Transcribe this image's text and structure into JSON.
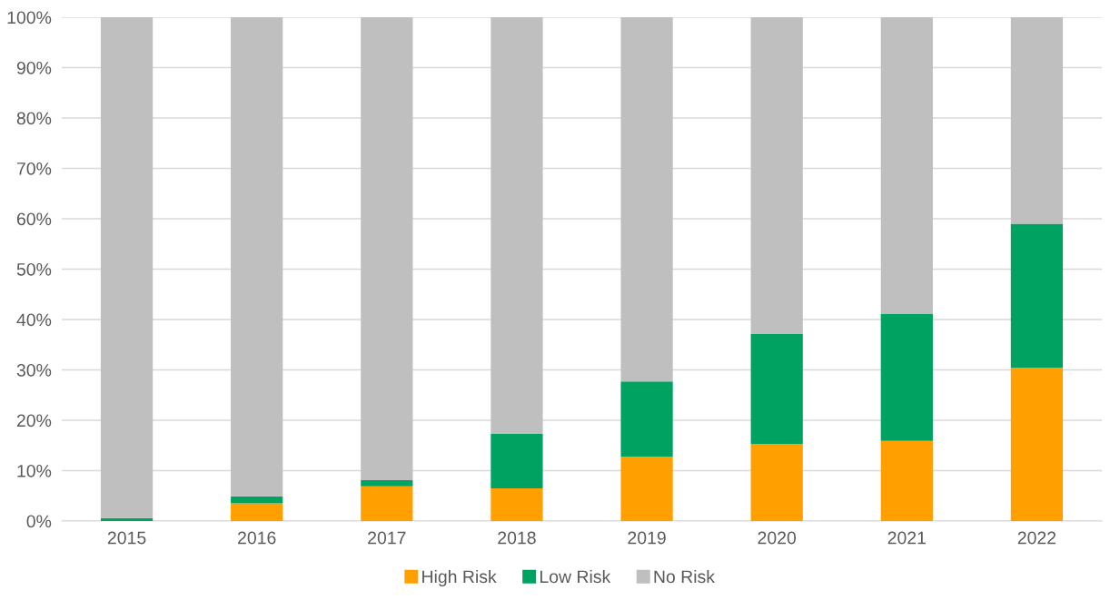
{
  "chart_data": {
    "type": "bar",
    "stacked": true,
    "categories": [
      "2015",
      "2016",
      "2017",
      "2018",
      "2019",
      "2020",
      "2021",
      "2022"
    ],
    "series": [
      {
        "name": "High Risk",
        "color": "#ffa000",
        "values": [
          0,
          3.5,
          6.9,
          6.5,
          12.8,
          15.3,
          15.9,
          30.4
        ]
      },
      {
        "name": "Low Risk",
        "color": "#00a262",
        "values": [
          0.6,
          1.4,
          1.2,
          10.8,
          14.9,
          21.8,
          25.2,
          28.6
        ]
      },
      {
        "name": "No Risk",
        "color": "#bfbfbf",
        "values": [
          99.4,
          95.1,
          91.9,
          82.7,
          72.3,
          62.9,
          58.9,
          41.0
        ]
      }
    ],
    "ylim": [
      0,
      100
    ],
    "yticks": [
      {
        "value": 0,
        "label": "0%"
      },
      {
        "value": 10,
        "label": "10%"
      },
      {
        "value": 20,
        "label": "20%"
      },
      {
        "value": 30,
        "label": "30%"
      },
      {
        "value": 40,
        "label": "40%"
      },
      {
        "value": 50,
        "label": "50%"
      },
      {
        "value": 60,
        "label": "60%"
      },
      {
        "value": 70,
        "label": "70%"
      },
      {
        "value": 80,
        "label": "80%"
      },
      {
        "value": 90,
        "label": "90%"
      },
      {
        "value": 100,
        "label": "100%"
      }
    ],
    "grid": "y",
    "legend": "bottom"
  }
}
